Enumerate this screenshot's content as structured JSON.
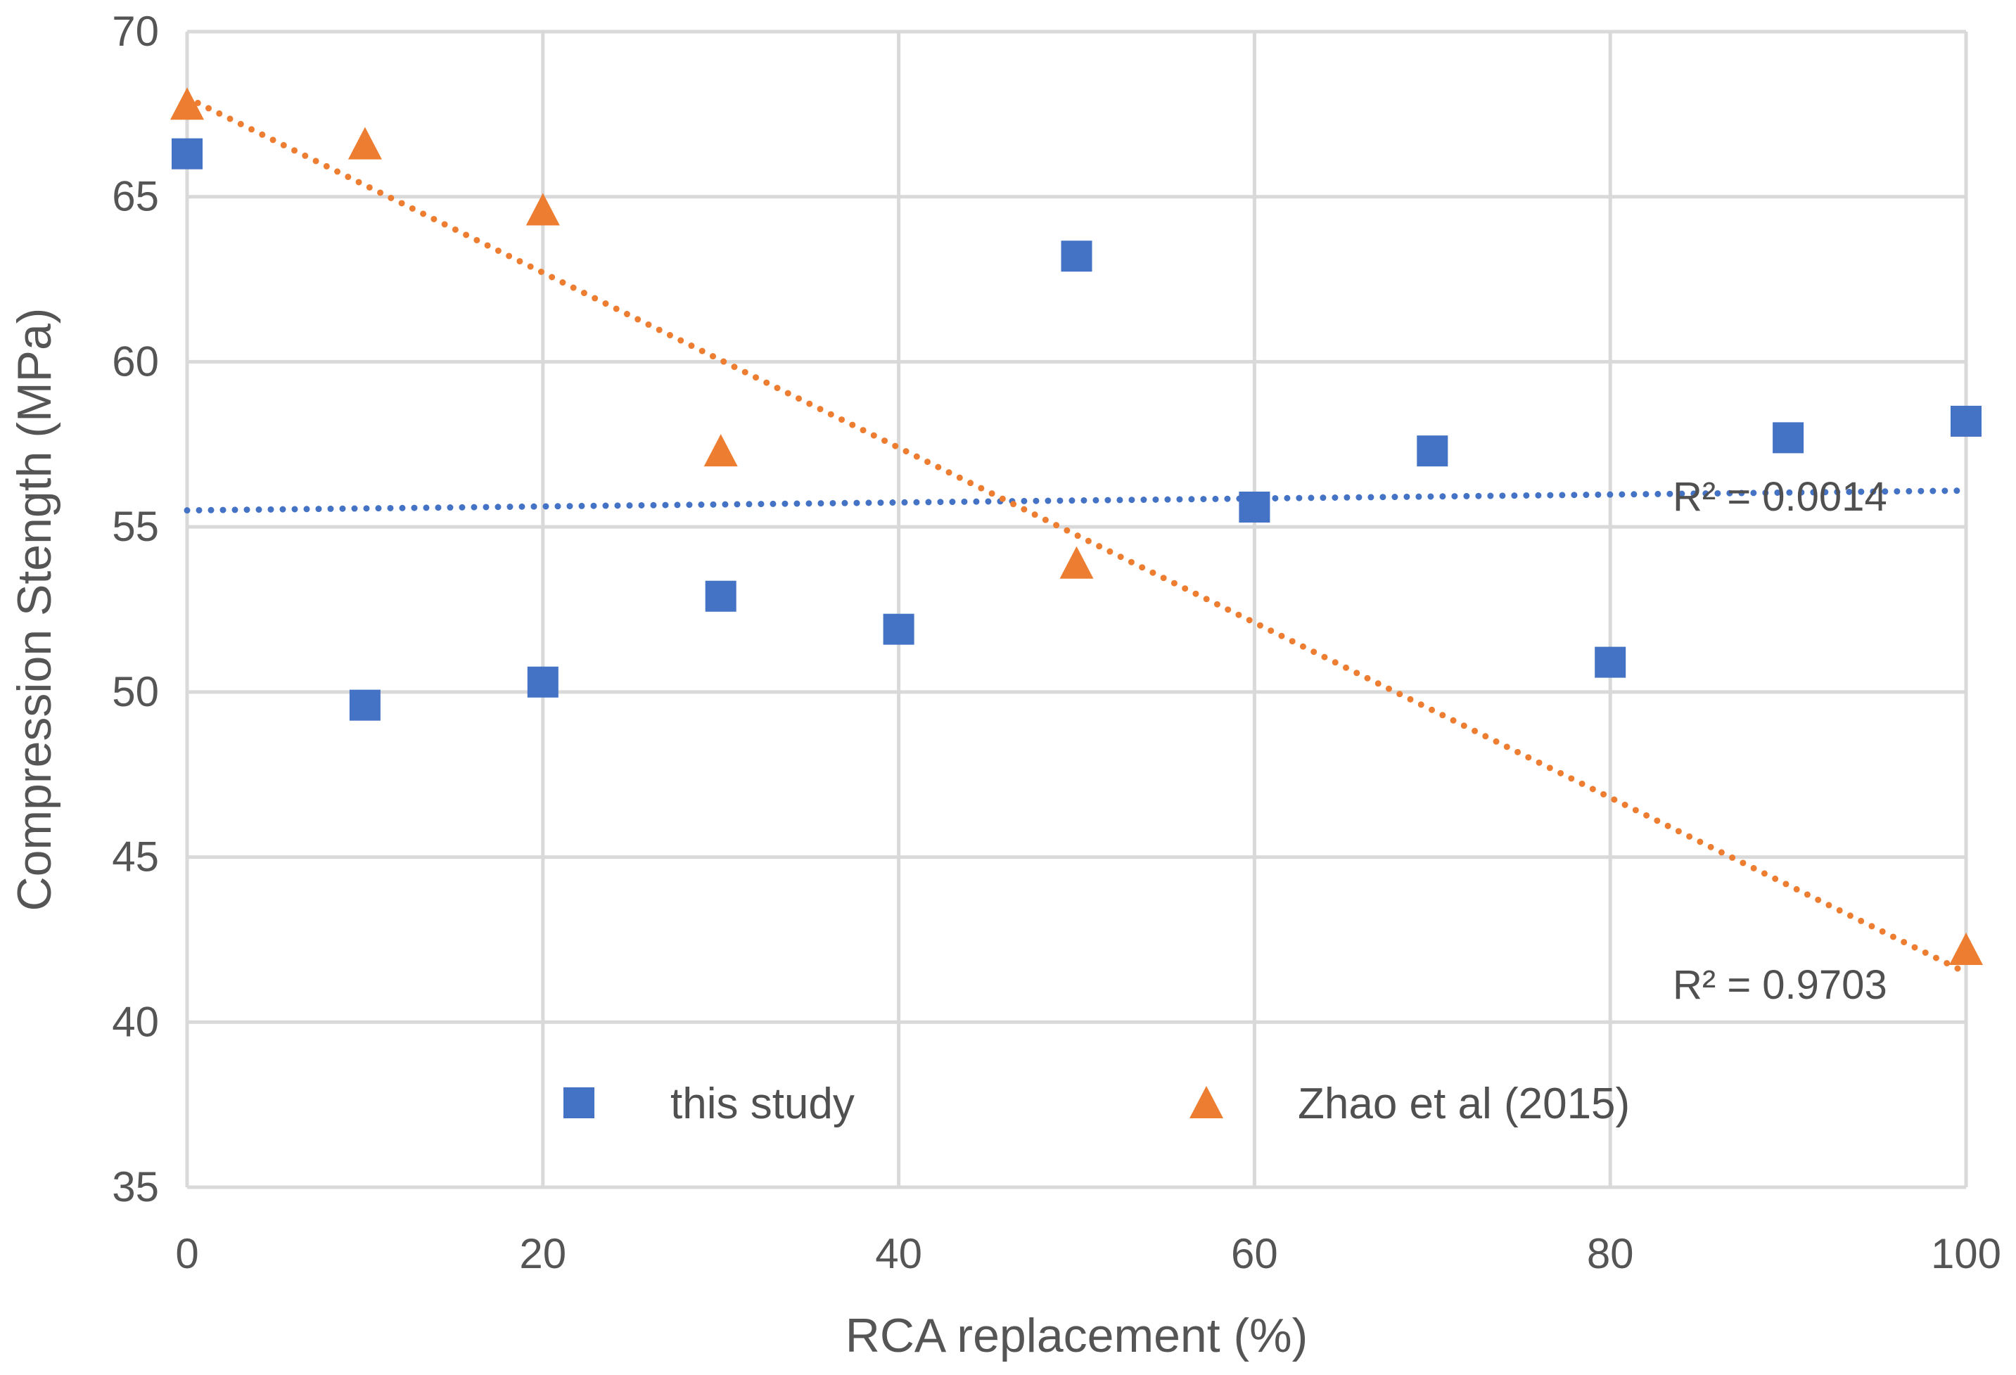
{
  "chart_data": {
    "type": "scatter",
    "title": "",
    "xlabel": "RCA replacement (%)",
    "ylabel": "Compression Stength (MPa)",
    "xlim": [
      0,
      100
    ],
    "ylim": [
      35,
      70
    ],
    "xticks": [
      0,
      20,
      40,
      60,
      80,
      100
    ],
    "yticks": [
      35,
      40,
      45,
      50,
      55,
      60,
      65,
      70
    ],
    "grid": true,
    "legend_position": "inside-bottom-center",
    "colors": {
      "this_study": "#4472C4",
      "zhao": "#ED7D31",
      "grid": "#D9D9D9",
      "text": "#595959"
    },
    "series": [
      {
        "name": "this study",
        "marker": "square",
        "color": "#4472C4",
        "x": [
          0,
          10,
          20,
          30,
          40,
          50,
          60,
          70,
          80,
          90,
          100
        ],
        "y": [
          66.3,
          49.6,
          50.3,
          52.9,
          51.9,
          63.2,
          55.6,
          57.3,
          50.9,
          57.7,
          58.2
        ],
        "trendline": {
          "type": "linear",
          "start": [
            0,
            55.5
          ],
          "end": [
            100,
            56.1
          ],
          "r2_label": "R² = 0.0014"
        }
      },
      {
        "name": "Zhao et al (2015)",
        "marker": "triangle",
        "color": "#ED7D31",
        "x": [
          0,
          10,
          20,
          30,
          50,
          100
        ],
        "y": [
          67.8,
          66.6,
          64.6,
          57.3,
          53.9,
          42.2
        ],
        "trendline": {
          "type": "linear",
          "start": [
            0,
            68.0
          ],
          "end": [
            100,
            41.5
          ],
          "r2_label": "R² = 0.9703"
        }
      }
    ]
  }
}
